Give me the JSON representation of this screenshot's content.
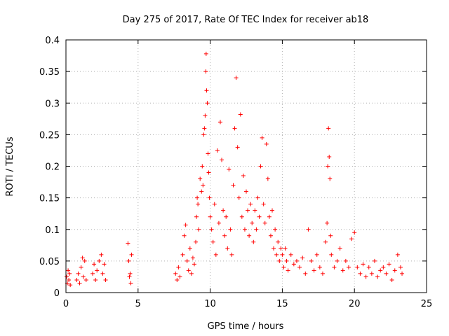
{
  "chart_data": {
    "type": "scatter",
    "title": "Day 275 of 2017, Rate Of TEC Index for receiver ab18",
    "xlabel": "GPS time / hours",
    "ylabel": "ROTI / TECUs",
    "xlim": [
      0,
      25
    ],
    "ylim": [
      0,
      0.4
    ],
    "xticks": [
      0,
      5,
      10,
      15,
      20,
      25
    ],
    "xtick_labels": [
      "0",
      "5",
      "10",
      "15",
      "20",
      "25"
    ],
    "yticks": [
      0,
      0.05,
      0.1,
      0.15,
      0.2,
      0.25,
      0.3,
      0.35,
      0.4
    ],
    "ytick_labels": [
      "0",
      "0.05",
      "0.1",
      "0.15",
      "0.2",
      "0.25",
      "0.3",
      "0.35",
      "0.4"
    ],
    "grid": true,
    "marker": "+",
    "colors": {
      "series": "#ff0000",
      "grid": "#b0b0b0",
      "axis": "#000000"
    },
    "series": [
      {
        "points": [
          [
            0.05,
            0.025
          ],
          [
            0.1,
            0.015
          ],
          [
            0.15,
            0.035
          ],
          [
            0.2,
            0.02
          ],
          [
            0.25,
            0.03
          ],
          [
            0.3,
            0.012
          ],
          [
            0.75,
            0.02
          ],
          [
            0.85,
            0.03
          ],
          [
            0.95,
            0.015
          ],
          [
            1.05,
            0.04
          ],
          [
            1.15,
            0.055
          ],
          [
            1.2,
            0.025
          ],
          [
            1.3,
            0.05
          ],
          [
            1.4,
            0.02
          ],
          [
            1.85,
            0.03
          ],
          [
            1.95,
            0.045
          ],
          [
            2.05,
            0.02
          ],
          [
            2.15,
            0.035
          ],
          [
            2.3,
            0.05
          ],
          [
            2.45,
            0.06
          ],
          [
            2.55,
            0.03
          ],
          [
            2.65,
            0.045
          ],
          [
            2.75,
            0.02
          ],
          [
            4.3,
            0.078
          ],
          [
            4.35,
            0.05
          ],
          [
            4.4,
            0.025
          ],
          [
            4.45,
            0.03
          ],
          [
            4.5,
            0.015
          ],
          [
            4.55,
            0.06
          ],
          [
            7.6,
            0.03
          ],
          [
            7.7,
            0.02
          ],
          [
            7.8,
            0.04
          ],
          [
            7.9,
            0.025
          ],
          [
            8.1,
            0.06
          ],
          [
            8.2,
            0.09
          ],
          [
            8.3,
            0.107
          ],
          [
            8.4,
            0.05
          ],
          [
            8.5,
            0.035
          ],
          [
            8.6,
            0.07
          ],
          [
            8.7,
            0.03
          ],
          [
            8.8,
            0.055
          ],
          [
            8.9,
            0.045
          ],
          [
            9.0,
            0.08
          ],
          [
            9.05,
            0.12
          ],
          [
            9.1,
            0.15
          ],
          [
            9.15,
            0.14
          ],
          [
            9.2,
            0.1
          ],
          [
            9.3,
            0.18
          ],
          [
            9.4,
            0.16
          ],
          [
            9.45,
            0.2
          ],
          [
            9.5,
            0.17
          ],
          [
            9.55,
            0.25
          ],
          [
            9.6,
            0.26
          ],
          [
            9.65,
            0.28
          ],
          [
            9.7,
            0.35
          ],
          [
            9.72,
            0.378
          ],
          [
            9.75,
            0.32
          ],
          [
            9.8,
            0.3
          ],
          [
            9.85,
            0.22
          ],
          [
            9.9,
            0.19
          ],
          [
            9.95,
            0.15
          ],
          [
            10.0,
            0.12
          ],
          [
            10.1,
            0.1
          ],
          [
            10.2,
            0.08
          ],
          [
            10.3,
            0.14
          ],
          [
            10.4,
            0.06
          ],
          [
            10.5,
            0.225
          ],
          [
            10.6,
            0.11
          ],
          [
            10.7,
            0.27
          ],
          [
            10.8,
            0.21
          ],
          [
            10.9,
            0.13
          ],
          [
            11.0,
            0.09
          ],
          [
            11.1,
            0.12
          ],
          [
            11.2,
            0.07
          ],
          [
            11.3,
            0.195
          ],
          [
            11.4,
            0.1
          ],
          [
            11.5,
            0.06
          ],
          [
            11.6,
            0.17
          ],
          [
            11.7,
            0.26
          ],
          [
            11.8,
            0.34
          ],
          [
            11.9,
            0.23
          ],
          [
            12.0,
            0.15
          ],
          [
            12.1,
            0.282
          ],
          [
            12.2,
            0.12
          ],
          [
            12.3,
            0.185
          ],
          [
            12.4,
            0.1
          ],
          [
            12.5,
            0.16
          ],
          [
            12.6,
            0.13
          ],
          [
            12.7,
            0.09
          ],
          [
            12.8,
            0.14
          ],
          [
            12.9,
            0.11
          ],
          [
            13.0,
            0.08
          ],
          [
            13.1,
            0.13
          ],
          [
            13.2,
            0.1
          ],
          [
            13.3,
            0.15
          ],
          [
            13.4,
            0.12
          ],
          [
            13.5,
            0.2
          ],
          [
            13.6,
            0.245
          ],
          [
            13.7,
            0.14
          ],
          [
            13.8,
            0.11
          ],
          [
            13.9,
            0.235
          ],
          [
            14.0,
            0.18
          ],
          [
            14.1,
            0.12
          ],
          [
            14.2,
            0.09
          ],
          [
            14.3,
            0.13
          ],
          [
            14.4,
            0.07
          ],
          [
            14.5,
            0.1
          ],
          [
            14.6,
            0.06
          ],
          [
            14.7,
            0.08
          ],
          [
            14.8,
            0.05
          ],
          [
            14.9,
            0.07
          ],
          [
            15.0,
            0.06
          ],
          [
            15.1,
            0.04
          ],
          [
            15.2,
            0.07
          ],
          [
            15.3,
            0.05
          ],
          [
            15.4,
            0.035
          ],
          [
            15.6,
            0.06
          ],
          [
            15.8,
            0.045
          ],
          [
            16.0,
            0.05
          ],
          [
            16.2,
            0.04
          ],
          [
            16.4,
            0.055
          ],
          [
            16.6,
            0.03
          ],
          [
            16.8,
            0.1
          ],
          [
            17.0,
            0.05
          ],
          [
            17.2,
            0.035
          ],
          [
            17.4,
            0.06
          ],
          [
            17.6,
            0.04
          ],
          [
            17.8,
            0.03
          ],
          [
            18.0,
            0.08
          ],
          [
            18.1,
            0.11
          ],
          [
            18.15,
            0.2
          ],
          [
            18.2,
            0.26
          ],
          [
            18.25,
            0.215
          ],
          [
            18.3,
            0.18
          ],
          [
            18.35,
            0.09
          ],
          [
            18.4,
            0.06
          ],
          [
            18.6,
            0.04
          ],
          [
            18.8,
            0.05
          ],
          [
            19.0,
            0.07
          ],
          [
            19.2,
            0.035
          ],
          [
            19.4,
            0.05
          ],
          [
            19.6,
            0.04
          ],
          [
            19.8,
            0.085
          ],
          [
            20.0,
            0.095
          ],
          [
            20.2,
            0.04
          ],
          [
            20.4,
            0.03
          ],
          [
            20.6,
            0.045
          ],
          [
            20.8,
            0.025
          ],
          [
            21.0,
            0.04
          ],
          [
            21.2,
            0.03
          ],
          [
            21.4,
            0.05
          ],
          [
            21.6,
            0.025
          ],
          [
            21.8,
            0.035
          ],
          [
            22.0,
            0.04
          ],
          [
            22.2,
            0.03
          ],
          [
            22.4,
            0.045
          ],
          [
            22.6,
            0.02
          ],
          [
            22.8,
            0.035
          ],
          [
            23.0,
            0.06
          ],
          [
            23.2,
            0.04
          ],
          [
            23.3,
            0.03
          ]
        ]
      }
    ]
  }
}
